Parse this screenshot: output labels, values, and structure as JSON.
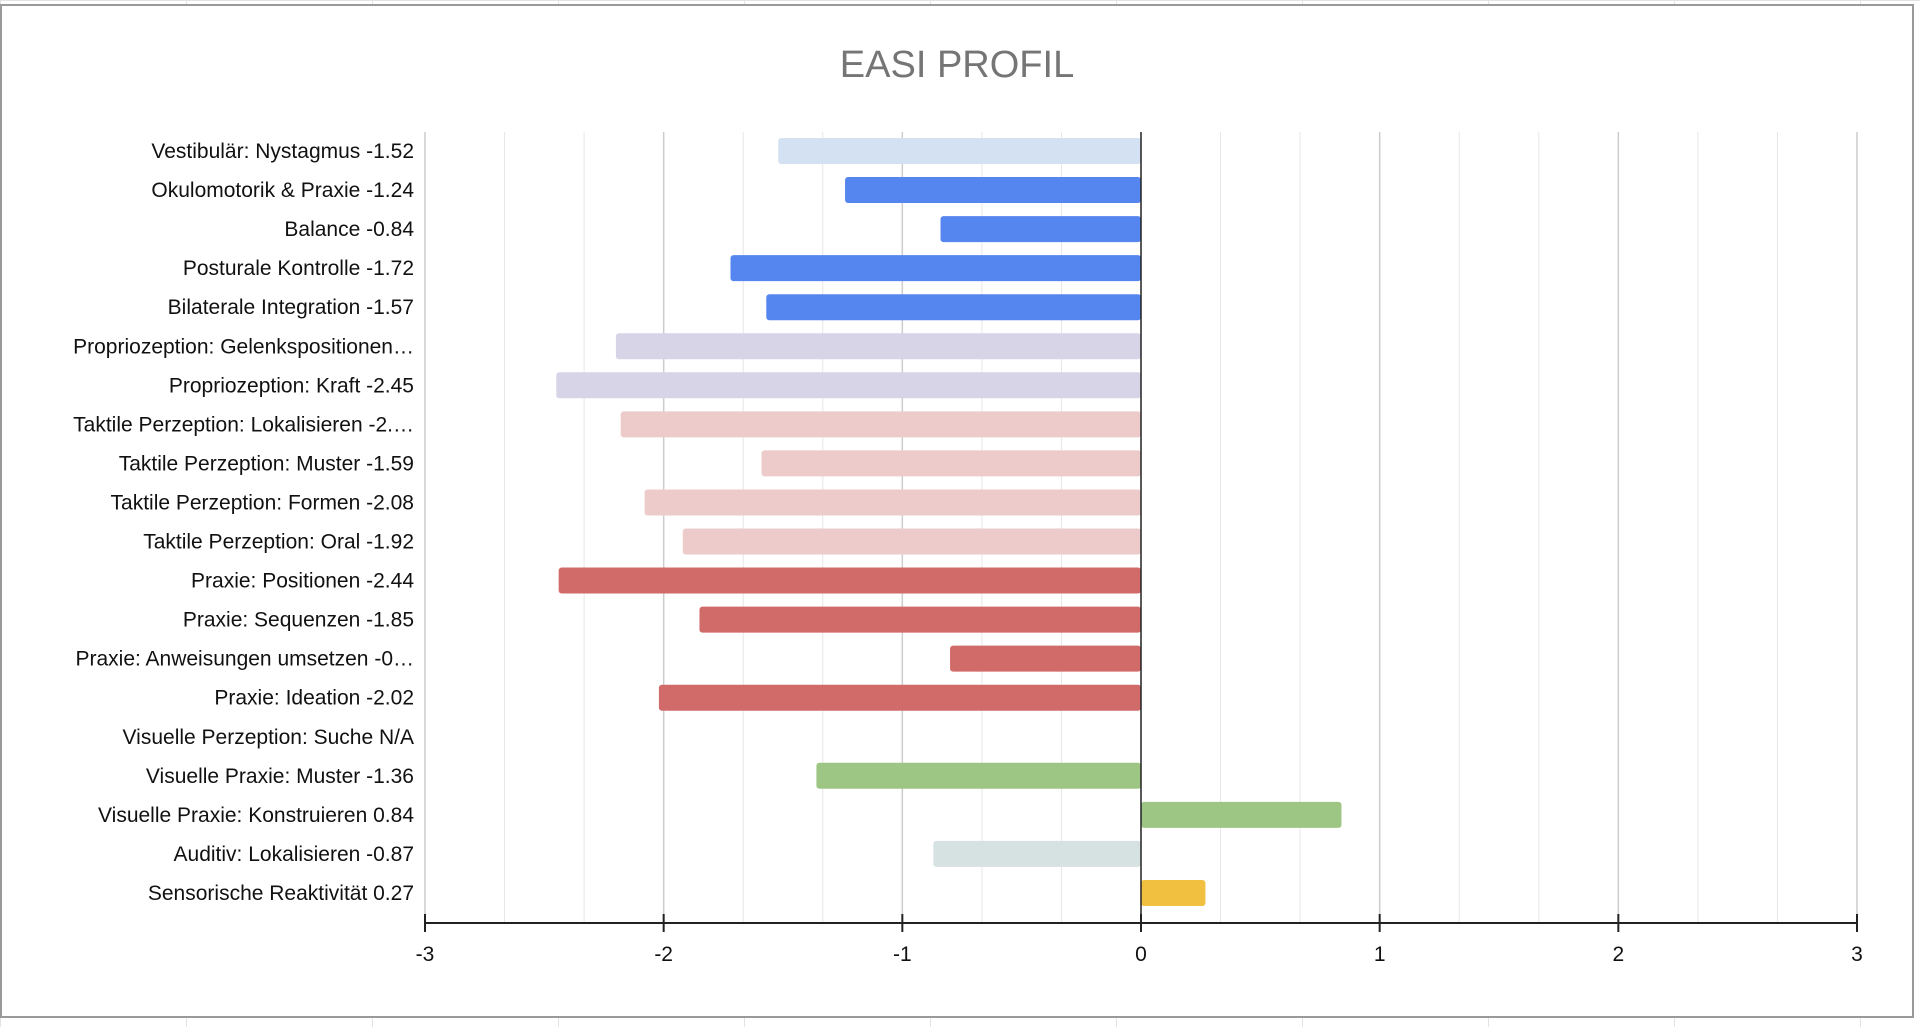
{
  "chart_data": {
    "type": "bar",
    "orientation": "horizontal",
    "title": "EASI PROFIL",
    "xlabel": "",
    "ylabel": "",
    "xlim": [
      -3,
      3
    ],
    "xticks": [
      -3,
      -2,
      -1,
      0,
      1,
      2,
      3
    ],
    "xtick_labels": [
      "-3",
      "-2",
      "-1",
      "0",
      "1",
      "2",
      "3"
    ],
    "grid": true,
    "legend": "none",
    "categories": [
      {
        "label": "Vestibulär: Nystagmus -1.52",
        "value": -1.52,
        "color": "#d4e1f3"
      },
      {
        "label": "Okulomotorik & Praxie -1.24",
        "value": -1.24,
        "color": "#5585ee"
      },
      {
        "label": "Balance -0.84",
        "value": -0.84,
        "color": "#5585ee"
      },
      {
        "label": "Posturale Kontrolle -1.72",
        "value": -1.72,
        "color": "#5585ee"
      },
      {
        "label": "Bilaterale Integration -1.57",
        "value": -1.57,
        "color": "#5585ee"
      },
      {
        "label": "Propriozeption: Gelenkspositionen…",
        "value": -2.2,
        "color": "#d8d4e8"
      },
      {
        "label": "Propriozeption: Kraft -2.45",
        "value": -2.45,
        "color": "#d8d4e8"
      },
      {
        "label": "Taktile Perzeption: Lokalisieren -2.…",
        "value": -2.18,
        "color": "#eecbcb"
      },
      {
        "label": "Taktile Perzeption: Muster -1.59",
        "value": -1.59,
        "color": "#eecbcb"
      },
      {
        "label": "Taktile Perzeption: Formen  -2.08",
        "value": -2.08,
        "color": "#eecbcb"
      },
      {
        "label": "Taktile Perzeption: Oral -1.92",
        "value": -1.92,
        "color": "#eecbcb"
      },
      {
        "label": "Praxie: Positionen  -2.44",
        "value": -2.44,
        "color": "#d06b69"
      },
      {
        "label": "Praxie: Sequenzen -1.85",
        "value": -1.85,
        "color": "#d06b69"
      },
      {
        "label": "Praxie: Anweisungen umsetzen -0…",
        "value": -0.8,
        "color": "#d06b69"
      },
      {
        "label": "Praxie: Ideation -2.02",
        "value": -2.02,
        "color": "#d06b69"
      },
      {
        "label": "Visuelle Perzeption: Suche N/A",
        "value": null,
        "color": "#9dc584"
      },
      {
        "label": "Visuelle Praxie: Muster -1.36",
        "value": -1.36,
        "color": "#9dc584"
      },
      {
        "label": "Visuelle Praxie: Konstruieren 0.84",
        "value": 0.84,
        "color": "#9dc584"
      },
      {
        "label": "Auditiv: Lokalisieren -0.87",
        "value": -0.87,
        "color": "#d6e1e2"
      },
      {
        "label": "Sensorische Reaktivität 0.27",
        "value": 0.27,
        "color": "#f1c040"
      }
    ]
  }
}
